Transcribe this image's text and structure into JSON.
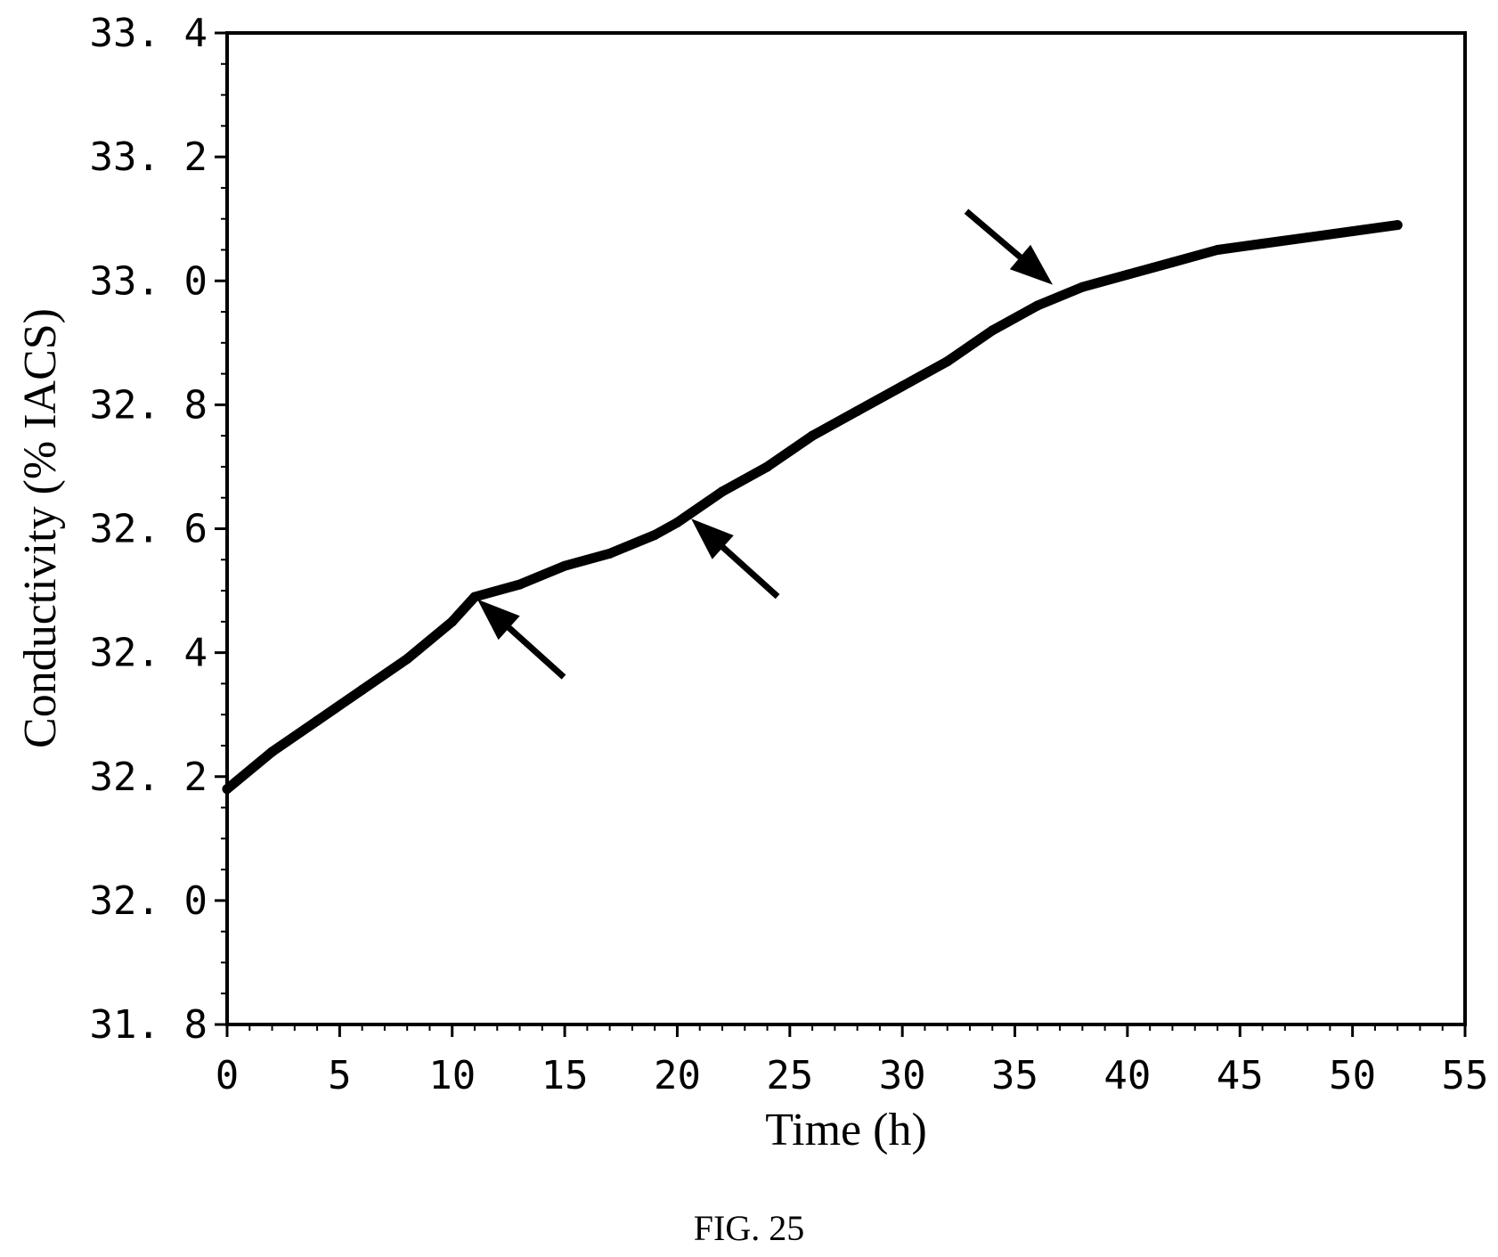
{
  "figure": {
    "caption": "FIG. 25"
  },
  "chart_data": {
    "type": "line",
    "title": "",
    "xlabel": "Time (h)",
    "ylabel": "Conductivity (% IACS)",
    "xlim": [
      0,
      55
    ],
    "ylim": [
      31.8,
      33.4
    ],
    "x_ticks": [
      "0",
      "5",
      "10",
      "15",
      "20",
      "25",
      "30",
      "35",
      "40",
      "45",
      "50",
      "55"
    ],
    "y_ticks": [
      "31. 8",
      "32. 0",
      "32. 2",
      "32. 4",
      "32. 6",
      "32. 8",
      "33. 0",
      "33. 2",
      "33. 4"
    ],
    "grid": false,
    "legend": "none",
    "line_color": "#000000",
    "series": [
      {
        "x": [
          0,
          2,
          4,
          6,
          8,
          10,
          11,
          13,
          15,
          17,
          19,
          20,
          22,
          24,
          26,
          28,
          30,
          32,
          34,
          36,
          38,
          40,
          42,
          44,
          46,
          48,
          50,
          52
        ],
        "y": [
          32.18,
          32.24,
          32.29,
          32.34,
          32.39,
          32.45,
          32.49,
          32.51,
          32.54,
          32.56,
          32.59,
          32.61,
          32.66,
          32.7,
          32.75,
          32.79,
          32.83,
          32.87,
          32.92,
          32.96,
          32.99,
          33.01,
          33.03,
          33.05,
          33.06,
          33.07,
          33.08,
          33.09
        ]
      }
    ],
    "annotations": [
      {
        "type": "arrow",
        "target_x": 11.0,
        "target_y": 32.49,
        "direction": "up-left"
      },
      {
        "type": "arrow",
        "target_x": 20.5,
        "target_y": 32.62,
        "direction": "up-left"
      },
      {
        "type": "arrow",
        "target_x": 36.8,
        "target_y": 32.99,
        "direction": "down-right"
      }
    ]
  }
}
